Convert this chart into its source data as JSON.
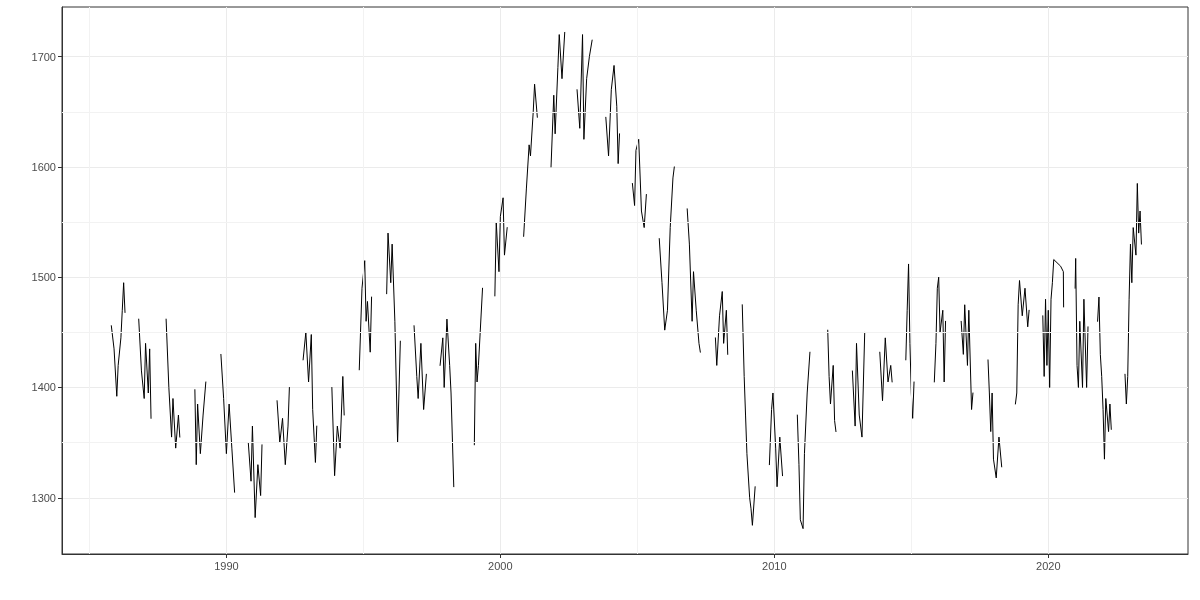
{
  "chart_data": {
    "type": "line",
    "grid": true,
    "marker": "none",
    "line_style": "solid",
    "xlim": [
      1984,
      2025.1
    ],
    "ylim": [
      1249,
      1745
    ],
    "xticks": [
      {
        "value": 1985,
        "label": null
      },
      1990,
      {
        "value": 1995,
        "label": null
      },
      2000,
      {
        "value": 2005,
        "label": null
      },
      2010,
      {
        "value": 2015,
        "label": null
      },
      2020
    ],
    "yticks": [
      {
        "value": 1350,
        "label": null
      },
      1300,
      {
        "value": 1450,
        "label": null
      },
      1400,
      {
        "value": 1550,
        "label": null
      },
      1500,
      {
        "value": 1650,
        "label": null
      },
      1600,
      1700
    ],
    "series": [
      {
        "color": "#000000",
        "x": [
          1985.8,
          1985.9,
          1986.0,
          1986.05,
          1986.15,
          1986.2,
          1986.25,
          1986.3,
          1986.5,
          1986.8,
          1986.9,
          1987.0,
          1987.05,
          1987.15,
          1987.2,
          1987.25,
          1987.5,
          1987.8,
          1987.9,
          1988.0,
          1988.05,
          1988.15,
          1988.25,
          1988.3,
          1988.6,
          1988.85,
          1988.9,
          1988.95,
          1989.05,
          1989.15,
          1989.25,
          1989.5,
          1989.8,
          1989.9,
          1990.0,
          1990.1,
          1990.2,
          1990.3,
          1990.5,
          1990.8,
          1990.9,
          1990.95,
          1991.05,
          1991.15,
          1991.25,
          1991.3,
          1991.6,
          1991.85,
          1991.95,
          1992.05,
          1992.15,
          1992.25,
          1992.3,
          1992.5,
          1992.8,
          1992.9,
          1993.0,
          1993.1,
          1993.15,
          1993.25,
          1993.3,
          1993.6,
          1993.85,
          1993.95,
          1994.05,
          1994.15,
          1994.25,
          1994.3,
          1994.6,
          1994.85,
          1994.95,
          1995.05,
          1995.1,
          1995.15,
          1995.25,
          1995.3,
          1995.6,
          1995.85,
          1995.9,
          1996.0,
          1996.05,
          1996.15,
          1996.25,
          1996.35,
          1996.6,
          1996.85,
          1996.95,
          1997.0,
          1997.1,
          1997.2,
          1997.3,
          1997.5,
          1997.8,
          1997.9,
          1997.95,
          1998.05,
          1998.15,
          1998.2,
          1998.3,
          1998.7,
          1999.05,
          1999.1,
          1999.15,
          1999.2,
          1999.35,
          1999.6,
          1999.8,
          1999.85,
          1999.95,
          2000.0,
          2000.1,
          2000.15,
          2000.25,
          2000.6,
          2000.85,
          2000.95,
          2001.05,
          2001.1,
          2001.2,
          2001.25,
          2001.35,
          2001.6,
          2001.85,
          2001.95,
          2002.0,
          2002.1,
          2002.15,
          2002.25,
          2002.35,
          2002.6,
          2002.8,
          2002.9,
          2003.0,
          2003.05,
          2003.15,
          2003.25,
          2003.35,
          2003.6,
          2003.85,
          2003.95,
          2004.05,
          2004.15,
          2004.25,
          2004.3,
          2004.35,
          2004.6,
          2004.82,
          2004.9,
          2004.95,
          2005.05,
          2005.15,
          2005.25,
          2005.33,
          2005.6,
          2005.8,
          2005.9,
          2006.0,
          2006.1,
          2006.2,
          2006.3,
          2006.35,
          2006.6,
          2006.82,
          2006.9,
          2007.0,
          2007.05,
          2007.15,
          2007.25,
          2007.3,
          2007.6,
          2007.85,
          2007.9,
          2008.0,
          2008.1,
          2008.15,
          2008.25,
          2008.3,
          2008.6,
          2008.83,
          2008.9,
          2008.95,
          2009.0,
          2009.1,
          2009.15,
          2009.2,
          2009.3,
          2009.6,
          2009.82,
          2009.9,
          2009.95,
          2010.05,
          2010.1,
          2010.2,
          2010.3,
          2010.6,
          2010.84,
          2010.9,
          2010.95,
          2011.05,
          2011.1,
          2011.2,
          2011.3,
          2011.6,
          2011.95,
          2012.0,
          2012.05,
          2012.15,
          2012.2,
          2012.25,
          2012.5,
          2012.85,
          2012.95,
          2013.0,
          2013.1,
          2013.2,
          2013.3,
          2013.6,
          2013.85,
          2013.95,
          2014.05,
          2014.15,
          2014.25,
          2014.3,
          2014.6,
          2014.8,
          2014.85,
          2014.9,
          2014.95,
          2015.0,
          2015.05,
          2015.1,
          2015.5,
          2015.84,
          2015.9,
          2015.95,
          2016.0,
          2016.05,
          2016.15,
          2016.2,
          2016.25,
          2016.5,
          2016.82,
          2016.9,
          2016.95,
          2017.05,
          2017.1,
          2017.2,
          2017.25,
          2017.5,
          2017.8,
          2017.85,
          2017.9,
          2017.95,
          2018.0,
          2018.1,
          2018.2,
          2018.3,
          2018.6,
          2018.8,
          2018.85,
          2018.9,
          2018.95,
          2019.05,
          2019.15,
          2019.25,
          2019.3,
          2019.6,
          2019.8,
          2019.85,
          2019.9,
          2019.95,
          2020.0,
          2020.05,
          2020.1,
          2020.15,
          2020.2,
          2020.45,
          2020.55,
          2020.56,
          2020.8,
          2020.98,
          2021.0,
          2021.05,
          2021.1,
          2021.15,
          2021.25,
          2021.3,
          2021.4,
          2021.45,
          2021.6,
          2021.8,
          2021.85,
          2021.9,
          2021.95,
          2022.0,
          2022.05,
          2022.1,
          2022.2,
          2022.25,
          2022.3,
          2022.6,
          2022.8,
          2022.85,
          2022.9,
          2022.95,
          2023.0,
          2023.05,
          2023.1,
          2023.2,
          2023.25,
          2023.3,
          2023.35,
          2023.4
        ],
        "values": [
          1456,
          1435,
          1392,
          1420,
          1445,
          1470,
          1495,
          1468,
          null,
          1462,
          1415,
          1390,
          1440,
          1395,
          1435,
          1372,
          null,
          1462,
          1400,
          1355,
          1390,
          1345,
          1375,
          1355,
          null,
          1398,
          1330,
          1385,
          1340,
          1375,
          1405,
          null,
          1430,
          1390,
          1340,
          1385,
          1345,
          1305,
          null,
          1350,
          1315,
          1365,
          1282,
          1330,
          1302,
          1348,
          null,
          1388,
          1350,
          1372,
          1330,
          1365,
          1400,
          null,
          1425,
          1450,
          1405,
          1448,
          1380,
          1332,
          1365,
          null,
          1400,
          1320,
          1365,
          1345,
          1410,
          1375,
          null,
          1416,
          1490,
          1515,
          1460,
          1478,
          1432,
          1482,
          null,
          1485,
          1540,
          1495,
          1530,
          1460,
          1350,
          1442,
          null,
          1456,
          1410,
          1390,
          1440,
          1380,
          1412,
          null,
          1420,
          1445,
          1400,
          1462,
          1420,
          1395,
          1310,
          null,
          1348,
          1440,
          1405,
          1420,
          1490,
          null,
          1483,
          1550,
          1505,
          1555,
          1572,
          1520,
          1545,
          null,
          1537,
          1580,
          1620,
          1610,
          1650,
          1675,
          1645,
          null,
          1600,
          1665,
          1630,
          1690,
          1720,
          1680,
          1722,
          null,
          1670,
          1635,
          1720,
          1625,
          1680,
          1700,
          1715,
          null,
          1645,
          1610,
          1670,
          1692,
          1655,
          1603,
          1630,
          null,
          1585,
          1565,
          1615,
          1625,
          1560,
          1545,
          1575,
          null,
          1535,
          1495,
          1452,
          1470,
          1545,
          1590,
          1600,
          null,
          1562,
          1530,
          1460,
          1505,
          1470,
          1440,
          1432,
          null,
          1445,
          1420,
          1465,
          1487,
          1440,
          1470,
          1430,
          null,
          1475,
          1410,
          1375,
          1340,
          1300,
          1290,
          1275,
          1310,
          null,
          1330,
          1380,
          1395,
          1345,
          1310,
          1355,
          1320,
          null,
          1375,
          1330,
          1280,
          1272,
          1340,
          1395,
          1432,
          null,
          1452,
          1410,
          1385,
          1420,
          1370,
          1360,
          null,
          1415,
          1365,
          1440,
          1375,
          1355,
          1450,
          null,
          1432,
          1388,
          1445,
          1405,
          1420,
          1405,
          null,
          1425,
          1470,
          1512,
          1440,
          1395,
          1372,
          1405,
          null,
          1405,
          1440,
          1490,
          1500,
          1450,
          1470,
          1405,
          1460,
          null,
          1460,
          1430,
          1475,
          1420,
          1470,
          1380,
          1395,
          null,
          1425,
          1395,
          1360,
          1395,
          1335,
          1318,
          1355,
          1328,
          null,
          1385,
          1395,
          1475,
          1497,
          1465,
          1490,
          1455,
          1470,
          null,
          1465,
          1410,
          1480,
          1420,
          1470,
          1400,
          1480,
          1495,
          1516,
          1510,
          1505,
          1473,
          null,
          1490,
          1517,
          1420,
          1400,
          1460,
          1400,
          1480,
          1400,
          1455,
          null,
          1460,
          1482,
          1430,
          1410,
          1380,
          1335,
          1390,
          1360,
          1385,
          1362,
          null,
          1412,
          1385,
          1410,
          1480,
          1530,
          1495,
          1545,
          1520,
          1585,
          1540,
          1560,
          1530
        ]
      }
    ]
  }
}
